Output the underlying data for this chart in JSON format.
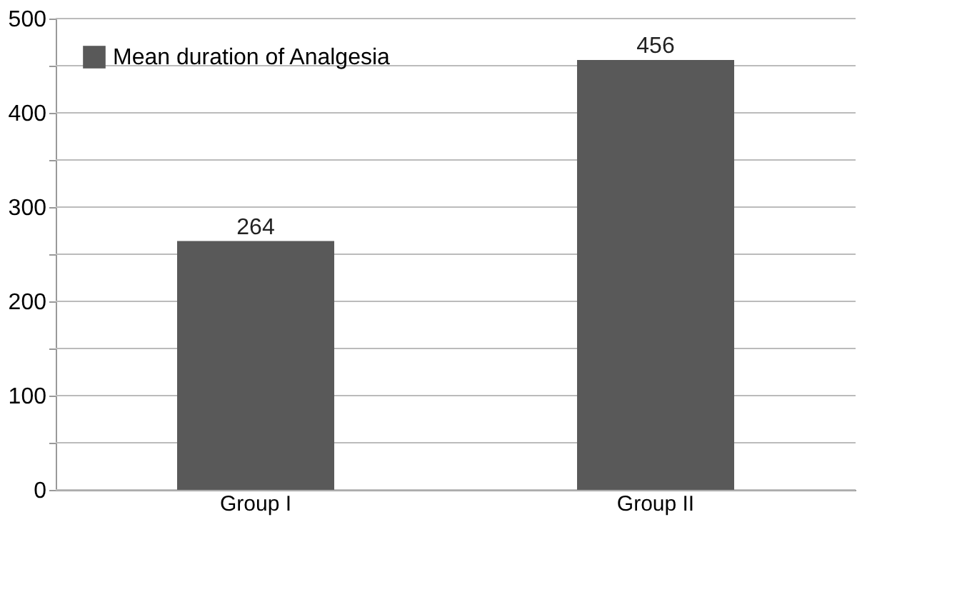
{
  "chart_data": {
    "type": "bar",
    "categories": [
      "Group I",
      "Group II"
    ],
    "series": [
      {
        "name": "Mean duration of Analgesia",
        "color": "#595959",
        "values": [
          264,
          456
        ]
      }
    ],
    "ylim": [
      0,
      500
    ],
    "yticks": [
      0,
      {
        "value": 50,
        "label": null
      },
      100,
      {
        "value": 150,
        "label": null
      },
      200,
      {
        "value": 250,
        "label": null
      },
      300,
      {
        "value": 350,
        "label": null
      },
      400,
      {
        "value": 450,
        "label": null
      },
      500
    ],
    "grid": "y",
    "legend": "top left",
    "data_labels": true
  }
}
